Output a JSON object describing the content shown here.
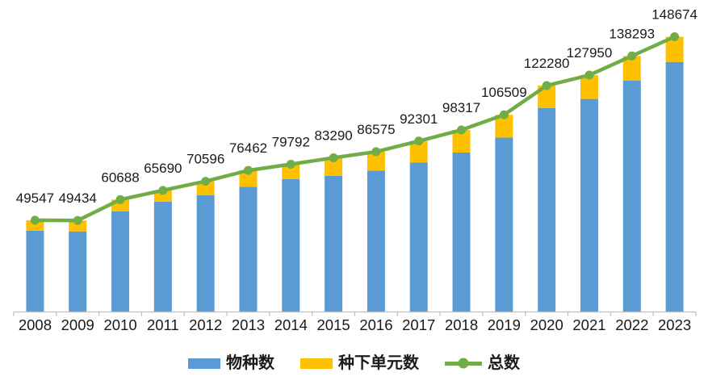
{
  "chart_data": {
    "type": "bar",
    "subtype": "stacked-column-with-line-overlay",
    "title": "",
    "categories": [
      "2008",
      "2009",
      "2010",
      "2011",
      "2012",
      "2013",
      "2014",
      "2015",
      "2016",
      "2017",
      "2018",
      "2019",
      "2020",
      "2021",
      "2022",
      "2023"
    ],
    "series": [
      {
        "name": "物种数",
        "render": "bar",
        "color": "#5B9BD5",
        "values": [
          43840,
          43500,
          54400,
          59500,
          63000,
          67650,
          71720,
          73480,
          76380,
          80660,
          86110,
          94170,
          110231,
          115064,
          125034,
          135061
        ]
      },
      {
        "name": "种下单元数",
        "render": "bar",
        "color": "#FFC000",
        "values": [
          5707,
          5934,
          6288,
          6190,
          7596,
          8812,
          8072,
          9810,
          10195,
          11641,
          12207,
          12339,
          12049,
          12886,
          13259,
          13613
        ]
      },
      {
        "name": "总数",
        "render": "line",
        "color": "#70AD47",
        "values": [
          49547,
          49434,
          60688,
          65690,
          70596,
          76462,
          79792,
          83290,
          86575,
          92301,
          98317,
          106509,
          122280,
          127950,
          138293,
          148674
        ]
      }
    ],
    "data_labels": [
      "49547",
      "49434",
      "60688",
      "65690",
      "70596",
      "76462",
      "79792",
      "83290",
      "86575",
      "92301",
      "98317",
      "106509",
      "122280",
      "127950",
      "138293",
      "148674"
    ],
    "legend": {
      "position": "bottom",
      "items": [
        "物种数",
        "种下单元数",
        "总数"
      ]
    },
    "axis": {
      "grid": false,
      "y_axis": "hidden",
      "baseline_color": "#BFBFBF"
    },
    "ylim": [
      0,
      155000
    ],
    "text_color": "#1a1a1a"
  },
  "legend": {
    "species": "物种数",
    "infraspecific": "种下单元数",
    "total": "总数"
  }
}
